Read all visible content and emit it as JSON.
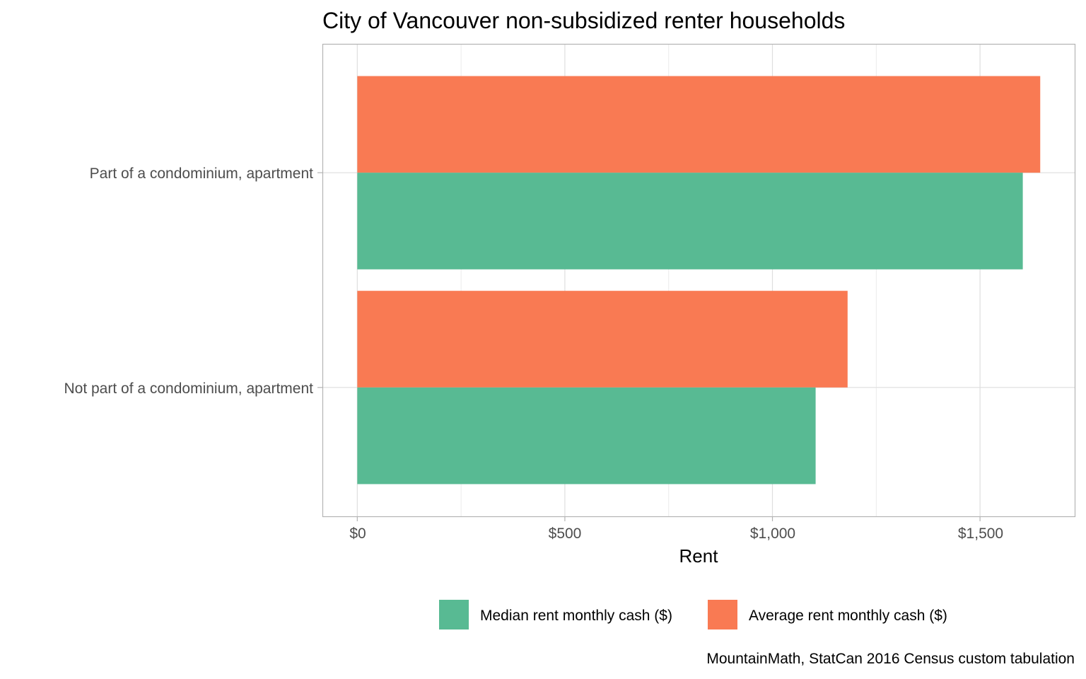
{
  "chart_data": {
    "type": "bar",
    "orientation": "horizontal",
    "title": "City of Vancouver non-subsidized renter households",
    "xlabel": "Rent",
    "ylabel": "",
    "caption": "MountainMath, StatCan 2016 Census custom tabulation",
    "categories": [
      "Part of a condominium, apartment",
      "Not part of a condominium, apartment"
    ],
    "series": [
      {
        "name": "Median rent monthly cash ($)",
        "color": "#58BA93",
        "values": [
          1603,
          1104
        ]
      },
      {
        "name": "Average rent monthly cash ($)",
        "color": "#F97A53",
        "values": [
          1645,
          1181
        ]
      }
    ],
    "xlim": [
      -84,
      1728
    ],
    "x_ticks": [
      0,
      500,
      1000,
      1500
    ],
    "x_tick_labels": [
      "$0",
      "$500",
      "$1,000",
      "$1,500"
    ],
    "grid": true,
    "legend_position": "bottom"
  }
}
